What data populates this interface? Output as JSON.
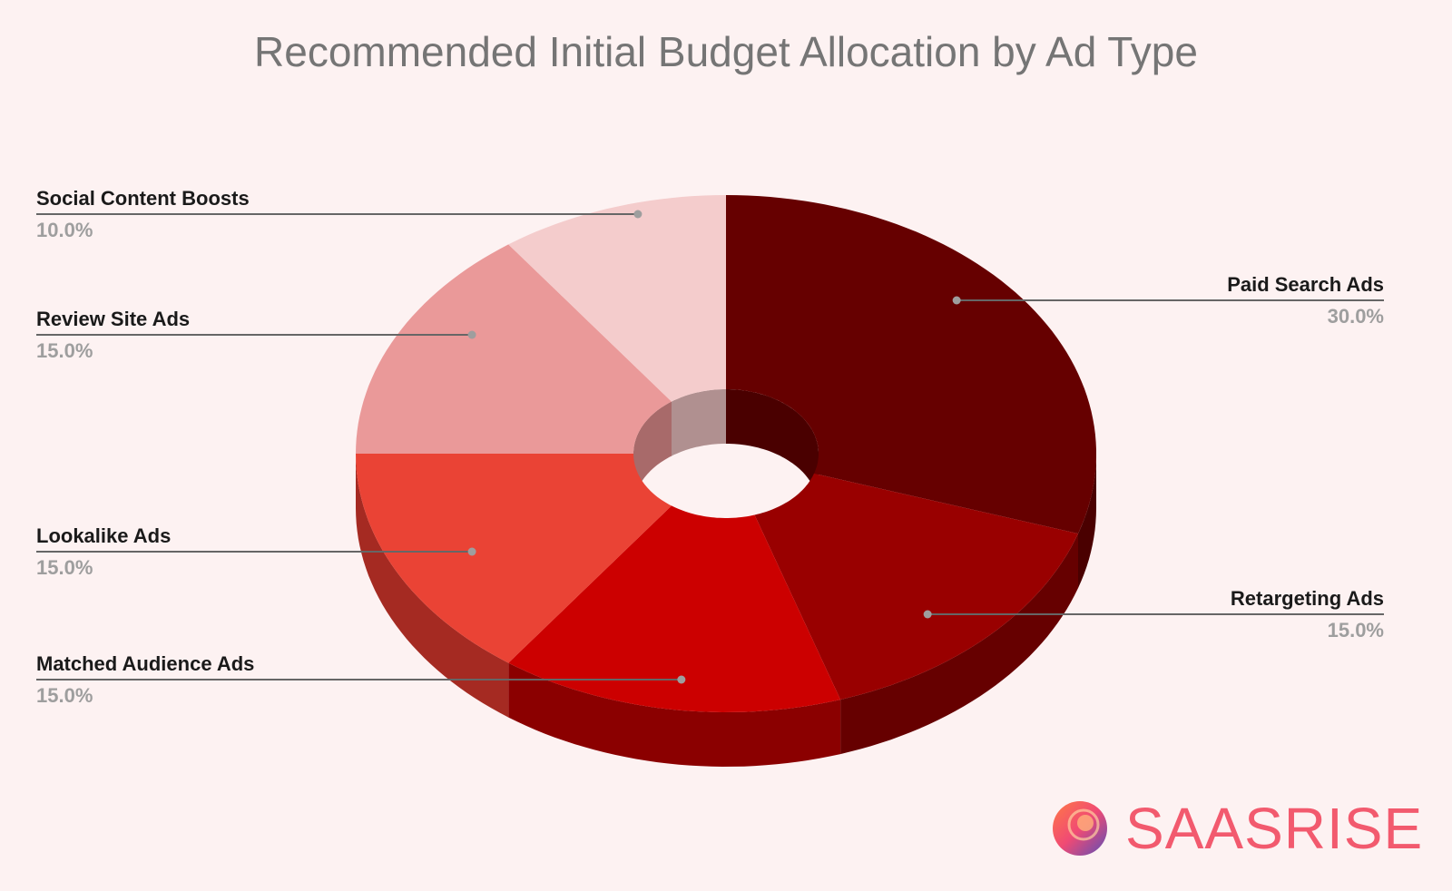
{
  "chart_data": {
    "type": "pie",
    "variant": "3d-donut",
    "title": "Recommended Initial Budget Allocation by Ad Type",
    "slices": [
      {
        "label": "Paid Search Ads",
        "value": 30.0,
        "display": "30.0%",
        "color": "#660000",
        "side": "#4a0000"
      },
      {
        "label": "Retargeting Ads",
        "value": 15.0,
        "display": "15.0%",
        "color": "#990000",
        "side": "#660000"
      },
      {
        "label": "Matched Audience Ads",
        "value": 15.0,
        "display": "15.0%",
        "color": "#cc0000",
        "side": "#8b0000"
      },
      {
        "label": "Lookalike Ads",
        "value": 15.0,
        "display": "15.0%",
        "color": "#ea4335",
        "side": "#a52a22"
      },
      {
        "label": "Review Site Ads",
        "value": 15.0,
        "display": "15.0%",
        "color": "#ea9999",
        "side": "#a86a6a"
      },
      {
        "label": "Social Content Boosts",
        "value": 10.0,
        "display": "10.0%",
        "color": "#f4cccc",
        "side": "#b09090"
      }
    ],
    "legend": "none (callout labels)"
  },
  "brand": {
    "name": "SAASRISE",
    "icon": "saasrise-logo-icon",
    "color": "#f25a6e"
  }
}
